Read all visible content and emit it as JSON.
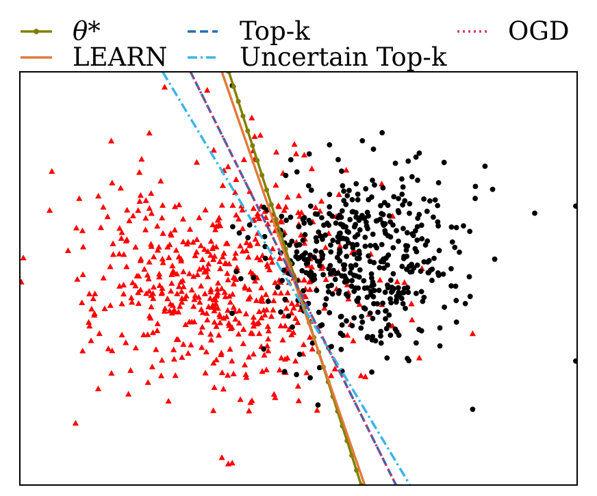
{
  "chart_data": {
    "type": "scatter",
    "title": "",
    "xlabel": "",
    "ylabel": "",
    "xlim": [
      -4.0,
      4.0
    ],
    "ylim": [
      -3.0,
      3.0
    ],
    "grid": false,
    "ticks_visible": false,
    "legend": {
      "placement": "top, outside plot, 3 columns",
      "entries": [
        {
          "label": "θ*",
          "series": "theta_star"
        },
        {
          "label": "LEARN",
          "series": "learn"
        },
        {
          "label": "Top-k",
          "series": "topk"
        },
        {
          "label": "Uncertain Top-k",
          "series": "uncertain_topk"
        },
        {
          "label": "OGD",
          "series": "ogd"
        }
      ]
    },
    "lines": [
      {
        "id": "theta_star",
        "name": "θ*",
        "color": "#808000",
        "style": "solid",
        "marker": "dot",
        "points": [
          [
            -1.0,
            3.0
          ],
          [
            0.9,
            -3.0
          ]
        ]
      },
      {
        "id": "learn",
        "name": "LEARN",
        "color": "#e07a3c",
        "style": "solid",
        "marker": "none",
        "points": [
          [
            -1.1,
            3.0
          ],
          [
            0.95,
            -3.0
          ]
        ]
      },
      {
        "id": "topk",
        "name": "Top-k",
        "color": "#1f6fb4",
        "style": "dashed",
        "marker": "none",
        "points": [
          [
            -1.55,
            3.0
          ],
          [
            1.4,
            -3.0
          ]
        ]
      },
      {
        "id": "uncertain_topk",
        "name": "Uncertain Top-k",
        "color": "#3bb4e6",
        "style": "dashdot",
        "marker": "none",
        "points": [
          [
            -1.95,
            3.0
          ],
          [
            1.6,
            -3.0
          ]
        ]
      },
      {
        "id": "ogd",
        "name": "OGD",
        "color": "#d6336c",
        "style": "dotted",
        "marker": "none",
        "points": [
          [
            -1.55,
            3.0
          ],
          [
            1.4,
            -3.0
          ]
        ]
      }
    ],
    "clusters": [
      {
        "name": "",
        "color": "#ff0000",
        "marker": "triangle",
        "count": 560,
        "center": [
          -1.1,
          0.0
        ],
        "spread": [
          0.95,
          0.85
        ],
        "seed": 7
      },
      {
        "name": "",
        "color": "#000000",
        "marker": "circle",
        "count": 470,
        "center": [
          0.9,
          0.3
        ],
        "spread": [
          0.75,
          0.7
        ],
        "seed": 19
      }
    ],
    "extra_points": [
      {
        "color": "#000000",
        "marker": "circle",
        "x": 3.98,
        "y": -1.2
      },
      {
        "color": "#000000",
        "marker": "circle",
        "x": 3.98,
        "y": 1.05
      },
      {
        "color": "#000000",
        "marker": "circle",
        "x": 2.5,
        "y": -1.9
      },
      {
        "color": "#000000",
        "marker": "circle",
        "x": -0.95,
        "y": 2.8
      },
      {
        "color": "#ff0000",
        "marker": "triangle",
        "x": -3.98,
        "y": -0.05
      },
      {
        "color": "#ff0000",
        "marker": "triangle",
        "x": -3.95,
        "y": 0.3
      },
      {
        "color": "#ff0000",
        "marker": "triangle",
        "x": -3.2,
        "y": -2.1
      },
      {
        "color": "#ff0000",
        "marker": "triangle",
        "x": -1.1,
        "y": -2.6
      },
      {
        "color": "#ff0000",
        "marker": "triangle",
        "x": 2.5,
        "y": -0.8
      }
    ]
  }
}
